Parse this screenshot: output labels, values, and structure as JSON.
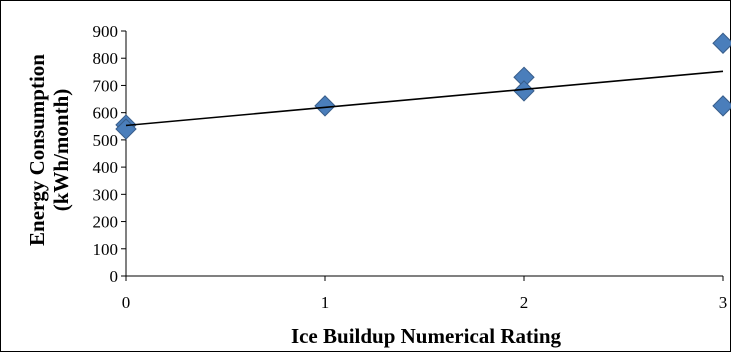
{
  "chart_data": {
    "type": "scatter",
    "title": "",
    "xlabel": "Ice Buildup Numerical Rating",
    "ylabel_line1": "Energy Consumption",
    "ylabel_line2": "(kWh/month)",
    "xlim": [
      0,
      3
    ],
    "ylim": [
      0,
      900
    ],
    "x_ticks": [
      0,
      1,
      2,
      3
    ],
    "y_ticks": [
      0,
      100,
      200,
      300,
      400,
      500,
      600,
      700,
      800,
      900
    ],
    "points": [
      {
        "x": 0,
        "y": 555
      },
      {
        "x": 0,
        "y": 540
      },
      {
        "x": 1,
        "y": 625
      },
      {
        "x": 2,
        "y": 730
      },
      {
        "x": 2,
        "y": 680
      },
      {
        "x": 3,
        "y": 855
      },
      {
        "x": 3,
        "y": 625
      }
    ],
    "trendline": {
      "x": [
        0,
        3
      ],
      "y": [
        553,
        752
      ]
    },
    "grid": false,
    "legend": "none",
    "marker_color": "#4a7ebb",
    "marker_edge_color": "#385d8a",
    "line_color": "#000000"
  }
}
